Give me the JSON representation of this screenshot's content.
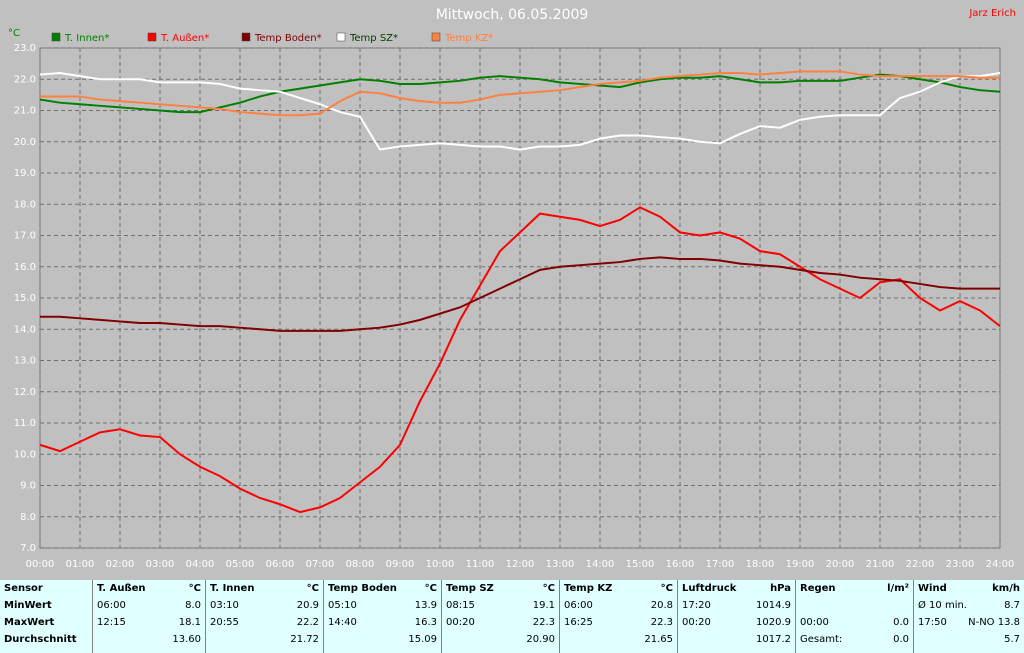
{
  "author": "Jarz Erich",
  "chart_data": {
    "type": "line",
    "title": "Mittwoch, 06.05.2009",
    "y_label": "°C",
    "grid": true,
    "x": [
      0,
      0.5,
      1,
      1.5,
      2,
      2.5,
      3,
      3.5,
      4,
      4.5,
      5,
      5.5,
      6,
      6.5,
      7,
      7.5,
      8,
      8.5,
      9,
      9.5,
      10,
      10.5,
      11,
      11.5,
      12,
      12.5,
      13,
      13.5,
      14,
      14.5,
      15,
      15.5,
      16,
      16.5,
      17,
      17.5,
      18,
      18.5,
      19,
      19.5,
      20,
      20.5,
      21,
      21.5,
      22,
      22.5,
      23,
      23.5,
      24
    ],
    "xlim": [
      0,
      24
    ],
    "xticks": [
      {
        "value": 0,
        "label": "00:00"
      },
      {
        "value": 1,
        "label": "01:00"
      },
      {
        "value": 2,
        "label": "02:00"
      },
      {
        "value": 3,
        "label": "03:00"
      },
      {
        "value": 4,
        "label": "04:00"
      },
      {
        "value": 5,
        "label": "05:00"
      },
      {
        "value": 6,
        "label": "06:00"
      },
      {
        "value": 7,
        "label": "07:00"
      },
      {
        "value": 8,
        "label": "08:00"
      },
      {
        "value": 9,
        "label": "09:00"
      },
      {
        "value": 10,
        "label": "10:00"
      },
      {
        "value": 11,
        "label": "11:00"
      },
      {
        "value": 12,
        "label": "12:00"
      },
      {
        "value": 13,
        "label": "13:00"
      },
      {
        "value": 14,
        "label": "14:00"
      },
      {
        "value": 15,
        "label": "15:00"
      },
      {
        "value": 16,
        "label": "16:00"
      },
      {
        "value": 17,
        "label": "17:00"
      },
      {
        "value": 18,
        "label": "18:00"
      },
      {
        "value": 19,
        "label": "19:00"
      },
      {
        "value": 20,
        "label": "20:00"
      },
      {
        "value": 21,
        "label": "21:00"
      },
      {
        "value": 22,
        "label": "22:00"
      },
      {
        "value": 23,
        "label": "23:00"
      },
      {
        "value": 24,
        "label": "24:00"
      }
    ],
    "ylim": [
      7,
      23
    ],
    "yticks": [
      {
        "value": 7,
        "label": "7.0"
      },
      {
        "value": 8,
        "label": "8.0"
      },
      {
        "value": 9,
        "label": "9.0"
      },
      {
        "value": 10,
        "label": "10.0"
      },
      {
        "value": 11,
        "label": "11.0"
      },
      {
        "value": 12,
        "label": "12.0"
      },
      {
        "value": 13,
        "label": "13.0"
      },
      {
        "value": 14,
        "label": "14.0"
      },
      {
        "value": 15,
        "label": "15.0"
      },
      {
        "value": 16,
        "label": "16.0"
      },
      {
        "value": 17,
        "label": "17.0"
      },
      {
        "value": 18,
        "label": "18.0"
      },
      {
        "value": 19,
        "label": "19.0"
      },
      {
        "value": 20,
        "label": "20.0"
      },
      {
        "value": 21,
        "label": "21.0"
      },
      {
        "value": 22,
        "label": "22.0"
      },
      {
        "value": 23,
        "label": "23.0"
      }
    ],
    "series": [
      {
        "name": "T. Innen*",
        "color": "#008000",
        "values": [
          21.35,
          21.25,
          21.2,
          21.15,
          21.1,
          21.05,
          21.0,
          20.95,
          20.95,
          21.1,
          21.25,
          21.45,
          21.6,
          21.7,
          21.8,
          21.9,
          22.0,
          21.95,
          21.85,
          21.85,
          21.9,
          21.95,
          22.05,
          22.1,
          22.05,
          22.0,
          21.9,
          21.85,
          21.8,
          21.75,
          21.9,
          22.0,
          22.05,
          22.05,
          22.1,
          22.0,
          21.9,
          21.9,
          21.95,
          21.95,
          21.95,
          22.05,
          22.15,
          22.1,
          22.0,
          21.9,
          21.75,
          21.65,
          21.6
        ]
      },
      {
        "name": "T. Außen*",
        "color": "#ff0000",
        "values": [
          10.3,
          10.1,
          10.4,
          10.7,
          10.8,
          10.6,
          10.55,
          10.0,
          9.6,
          9.3,
          8.9,
          8.6,
          8.4,
          8.15,
          8.3,
          8.6,
          9.1,
          9.6,
          10.3,
          11.7,
          12.9,
          14.3,
          15.4,
          16.5,
          17.1,
          17.7,
          17.6,
          17.5,
          17.3,
          17.5,
          17.9,
          17.6,
          17.1,
          17.0,
          17.1,
          16.9,
          16.5,
          16.4,
          16.0,
          15.6,
          15.3,
          15.0,
          15.5,
          15.6,
          15.0,
          14.6,
          14.9,
          14.6,
          14.1
        ]
      },
      {
        "name": "Temp Boden*",
        "color": "#800000",
        "values": [
          14.4,
          14.4,
          14.35,
          14.3,
          14.25,
          14.2,
          14.2,
          14.15,
          14.1,
          14.1,
          14.05,
          14.0,
          13.95,
          13.95,
          13.95,
          13.95,
          14.0,
          14.05,
          14.15,
          14.3,
          14.5,
          14.7,
          15.0,
          15.3,
          15.6,
          15.9,
          16.0,
          16.05,
          16.1,
          16.15,
          16.25,
          16.3,
          16.25,
          16.25,
          16.2,
          16.1,
          16.05,
          16.0,
          15.9,
          15.8,
          15.75,
          15.65,
          15.6,
          15.55,
          15.45,
          15.35,
          15.3,
          15.3,
          15.3
        ]
      },
      {
        "name": "Temp SZ*",
        "color": "#ffffff",
        "values": [
          22.15,
          22.2,
          22.1,
          22.0,
          22.0,
          22.0,
          21.9,
          21.9,
          21.9,
          21.85,
          21.7,
          21.65,
          21.6,
          21.4,
          21.2,
          20.95,
          20.8,
          19.75,
          19.85,
          19.9,
          19.95,
          19.9,
          19.85,
          19.85,
          19.75,
          19.85,
          19.85,
          19.9,
          20.1,
          20.2,
          20.2,
          20.15,
          20.1,
          20.0,
          19.95,
          20.25,
          20.5,
          20.45,
          20.7,
          20.8,
          20.85,
          20.85,
          20.85,
          21.4,
          21.6,
          21.9,
          22.1,
          22.1,
          22.2
        ]
      },
      {
        "name": "Temp KZ*",
        "color": "#ff8040",
        "values": [
          21.45,
          21.45,
          21.45,
          21.35,
          21.3,
          21.25,
          21.2,
          21.15,
          21.1,
          21.05,
          20.95,
          20.9,
          20.85,
          20.85,
          20.9,
          21.3,
          21.6,
          21.55,
          21.4,
          21.3,
          21.25,
          21.25,
          21.35,
          21.5,
          21.55,
          21.6,
          21.65,
          21.75,
          21.85,
          21.9,
          21.95,
          22.05,
          22.1,
          22.15,
          22.2,
          22.2,
          22.15,
          22.2,
          22.25,
          22.25,
          22.25,
          22.15,
          22.1,
          22.1,
          22.1,
          22.1,
          22.1,
          22.05,
          22.05
        ]
      }
    ]
  },
  "table": {
    "row_labels": [
      "Sensor",
      "MinWert",
      "MaxWert",
      "Durchschnitt"
    ],
    "groups": [
      {
        "name": "T. Außen",
        "unit": "°C",
        "rows": [
          [
            "06:00",
            "8.0"
          ],
          [
            "12:15",
            "18.1"
          ],
          [
            "13.60"
          ]
        ]
      },
      {
        "name": "T. Innen",
        "unit": "°C",
        "rows": [
          [
            "03:10",
            "20.9"
          ],
          [
            "20:55",
            "22.2"
          ],
          [
            "21.72"
          ]
        ]
      },
      {
        "name": "Temp Boden",
        "unit": "°C",
        "rows": [
          [
            "05:10",
            "13.9"
          ],
          [
            "14:40",
            "16.3"
          ],
          [
            "15.09"
          ]
        ]
      },
      {
        "name": "Temp SZ",
        "unit": "°C",
        "rows": [
          [
            "08:15",
            "19.1"
          ],
          [
            "00:20",
            "22.3"
          ],
          [
            "20.90"
          ]
        ]
      },
      {
        "name": "Temp KZ",
        "unit": "°C",
        "rows": [
          [
            "06:00",
            "20.8"
          ],
          [
            "16:25",
            "22.3"
          ],
          [
            "21.65"
          ]
        ]
      },
      {
        "name": "Luftdruck",
        "unit": "hPa",
        "rows": [
          [
            "17:20",
            "1014.9"
          ],
          [
            "00:20",
            "1020.9"
          ],
          [
            "1017.2"
          ]
        ]
      },
      {
        "name": "Regen",
        "unit": "l/m²",
        "rows": [
          [],
          [
            "00:00",
            "0.0"
          ],
          [
            "Gesamt:",
            "0.0"
          ]
        ]
      },
      {
        "name": "Wind",
        "unit": "km/h",
        "rows": [
          [
            "Ø 10 min.",
            "8.7"
          ],
          [
            "17:50",
            "N-NO 13.8"
          ],
          [
            "5.7"
          ]
        ]
      }
    ]
  }
}
